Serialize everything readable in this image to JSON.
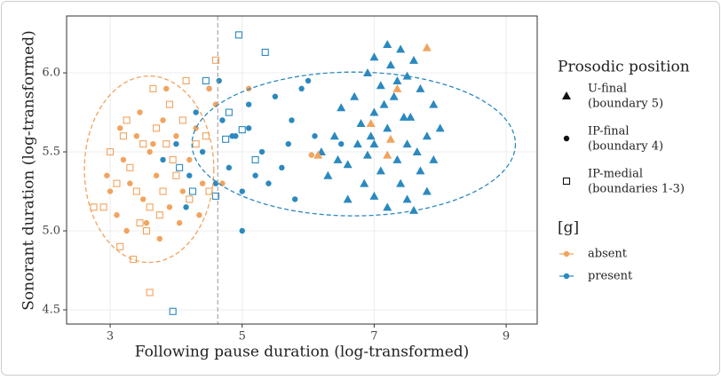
{
  "chart_data": {
    "type": "scatter",
    "x_label": "Following pause duration (log-transformed)",
    "y_label": "Sonorant duration (log-transformed)",
    "xlim": [
      2.34,
      9.47
    ],
    "xticks": [
      3,
      5,
      7,
      9
    ],
    "ylim": [
      4.41,
      6.36
    ],
    "yticks": [
      4.5,
      {
        "value": 5,
        "label": "5.0"
      },
      5.5,
      {
        "value": 6,
        "label": "6.0"
      }
    ],
    "grid": true,
    "vline": 4.63,
    "ellipses": [
      {
        "color": "#f2a35e",
        "cx": 3.59,
        "cy": 5.39,
        "rx": 0.98,
        "ry": 0.59
      },
      {
        "color": "#2b89bf",
        "cx": 6.69,
        "cy": 5.55,
        "rx": 2.45,
        "ry": 0.455
      }
    ],
    "shape_legend": {
      "title": "Prosodic position",
      "items": [
        {
          "shape": "triangle",
          "lines": [
            "U-final",
            "(boundary 5)"
          ]
        },
        {
          "shape": "circle",
          "lines": [
            "IP-final",
            "(boundary 4)"
          ]
        },
        {
          "shape": "square",
          "lines": [
            "IP-medial",
            "(boundaries 1-3)"
          ]
        }
      ]
    },
    "color_legend": {
      "title": "[g]",
      "items": [
        {
          "color": "#f2a35e",
          "label": "absent"
        },
        {
          "color": "#2b89bf",
          "label": "present"
        }
      ]
    },
    "series": [
      {
        "shape": "triangle",
        "color": "#2b89bf",
        "x": [
          7.2,
          7.4,
          7.0,
          7.25,
          7.6,
          6.9,
          7.5,
          7.1,
          7.7,
          6.7,
          7.3,
          7.9,
          6.5,
          7.0,
          7.55,
          8.0,
          6.8,
          7.2,
          7.8,
          6.4,
          7.0,
          7.5,
          6.2,
          6.9,
          7.35,
          7.9,
          6.6,
          7.1,
          7.7,
          6.3,
          6.85,
          7.4,
          7.8,
          7.0,
          7.5,
          6.6,
          7.2,
          7.6,
          6.95,
          7.45,
          6.75,
          7.15,
          7.65,
          6.45,
          7.35
        ],
        "y": [
          6.18,
          6.15,
          6.1,
          6.05,
          6.08,
          6.0,
          5.98,
          5.92,
          5.9,
          5.85,
          5.85,
          5.8,
          5.78,
          5.75,
          5.72,
          5.65,
          5.68,
          5.65,
          5.6,
          5.6,
          5.55,
          5.55,
          5.5,
          5.48,
          5.45,
          5.45,
          5.42,
          5.38,
          5.38,
          5.35,
          5.3,
          5.3,
          5.25,
          5.22,
          5.2,
          5.2,
          5.15,
          5.13,
          5.6,
          5.72,
          5.55,
          5.8,
          5.5,
          5.45,
          5.95
        ]
      },
      {
        "shape": "triangle",
        "color": "#f2a35e",
        "x": [
          7.8,
          7.35,
          7.25,
          6.95,
          6.15,
          7.2
        ],
        "y": [
          6.16,
          5.9,
          5.58,
          5.68,
          5.48,
          5.48
        ]
      },
      {
        "shape": "circle",
        "color": "#2b89bf",
        "x": [
          4.3,
          4.7,
          5.1,
          5.5,
          5.9,
          6.0,
          4.5,
          4.9,
          5.3,
          5.7,
          6.1,
          4.4,
          4.8,
          5.2,
          5.6,
          4.2,
          4.6,
          5.0,
          5.4,
          5.8,
          4.0,
          3.8,
          4.15,
          5.0,
          5.1,
          5.75,
          4.65,
          4.85,
          6.5
        ],
        "y": [
          5.75,
          5.7,
          5.8,
          5.85,
          5.9,
          5.95,
          5.9,
          5.6,
          5.5,
          5.55,
          5.6,
          5.5,
          5.4,
          5.35,
          5.4,
          5.35,
          5.3,
          5.25,
          5.3,
          5.2,
          5.55,
          5.45,
          5.15,
          5.0,
          5.65,
          5.7,
          5.95,
          5.6,
          5.55
        ]
      },
      {
        "shape": "circle",
        "color": "#f2a35e",
        "x": [
          3.0,
          3.2,
          3.4,
          3.6,
          3.8,
          4.0,
          4.2,
          4.4,
          3.1,
          3.3,
          3.5,
          3.7,
          3.9,
          4.1,
          3.25,
          3.55,
          3.75,
          4.3,
          4.5,
          4.6,
          3.15,
          3.45,
          3.85,
          4.05,
          4.35,
          2.95,
          4.7,
          5.1,
          6.05,
          3.65
        ],
        "y": [
          5.25,
          5.45,
          5.6,
          5.5,
          5.7,
          5.6,
          5.45,
          5.3,
          5.1,
          5.3,
          5.2,
          5.35,
          5.15,
          5.25,
          5.0,
          5.05,
          4.95,
          5.65,
          5.9,
          5.8,
          5.65,
          5.75,
          5.9,
          5.05,
          5.1,
          5.35,
          5.3,
          5.9,
          5.48,
          5.55
        ]
      },
      {
        "shape": "square",
        "color": "#2b89bf",
        "x": [
          4.95,
          5.35,
          4.6,
          4.25,
          3.95,
          4.75,
          5.0,
          4.45,
          5.2,
          4.05,
          4.8
        ],
        "y": [
          6.24,
          6.13,
          5.22,
          5.25,
          4.49,
          5.58,
          5.64,
          5.95,
          5.45,
          5.4,
          5.75
        ]
      },
      {
        "shape": "square",
        "color": "#f2a35e",
        "x": [
          2.9,
          3.1,
          3.3,
          3.5,
          3.7,
          3.9,
          4.1,
          4.3,
          3.0,
          3.2,
          3.4,
          3.6,
          3.8,
          4.0,
          4.2,
          3.15,
          3.35,
          3.55,
          3.75,
          3.95,
          4.45,
          4.6,
          4.15,
          3.65,
          2.75,
          3.6,
          4.5,
          3.25,
          3.45,
          3.85
        ],
        "y": [
          5.15,
          5.3,
          5.4,
          5.55,
          5.65,
          5.8,
          5.7,
          5.55,
          5.5,
          5.6,
          5.25,
          5.15,
          5.25,
          5.35,
          5.2,
          4.9,
          4.82,
          5.0,
          5.1,
          5.45,
          5.6,
          6.08,
          5.95,
          5.9,
          5.15,
          4.61,
          5.25,
          5.7,
          5.05,
          5.55
        ]
      }
    ]
  }
}
